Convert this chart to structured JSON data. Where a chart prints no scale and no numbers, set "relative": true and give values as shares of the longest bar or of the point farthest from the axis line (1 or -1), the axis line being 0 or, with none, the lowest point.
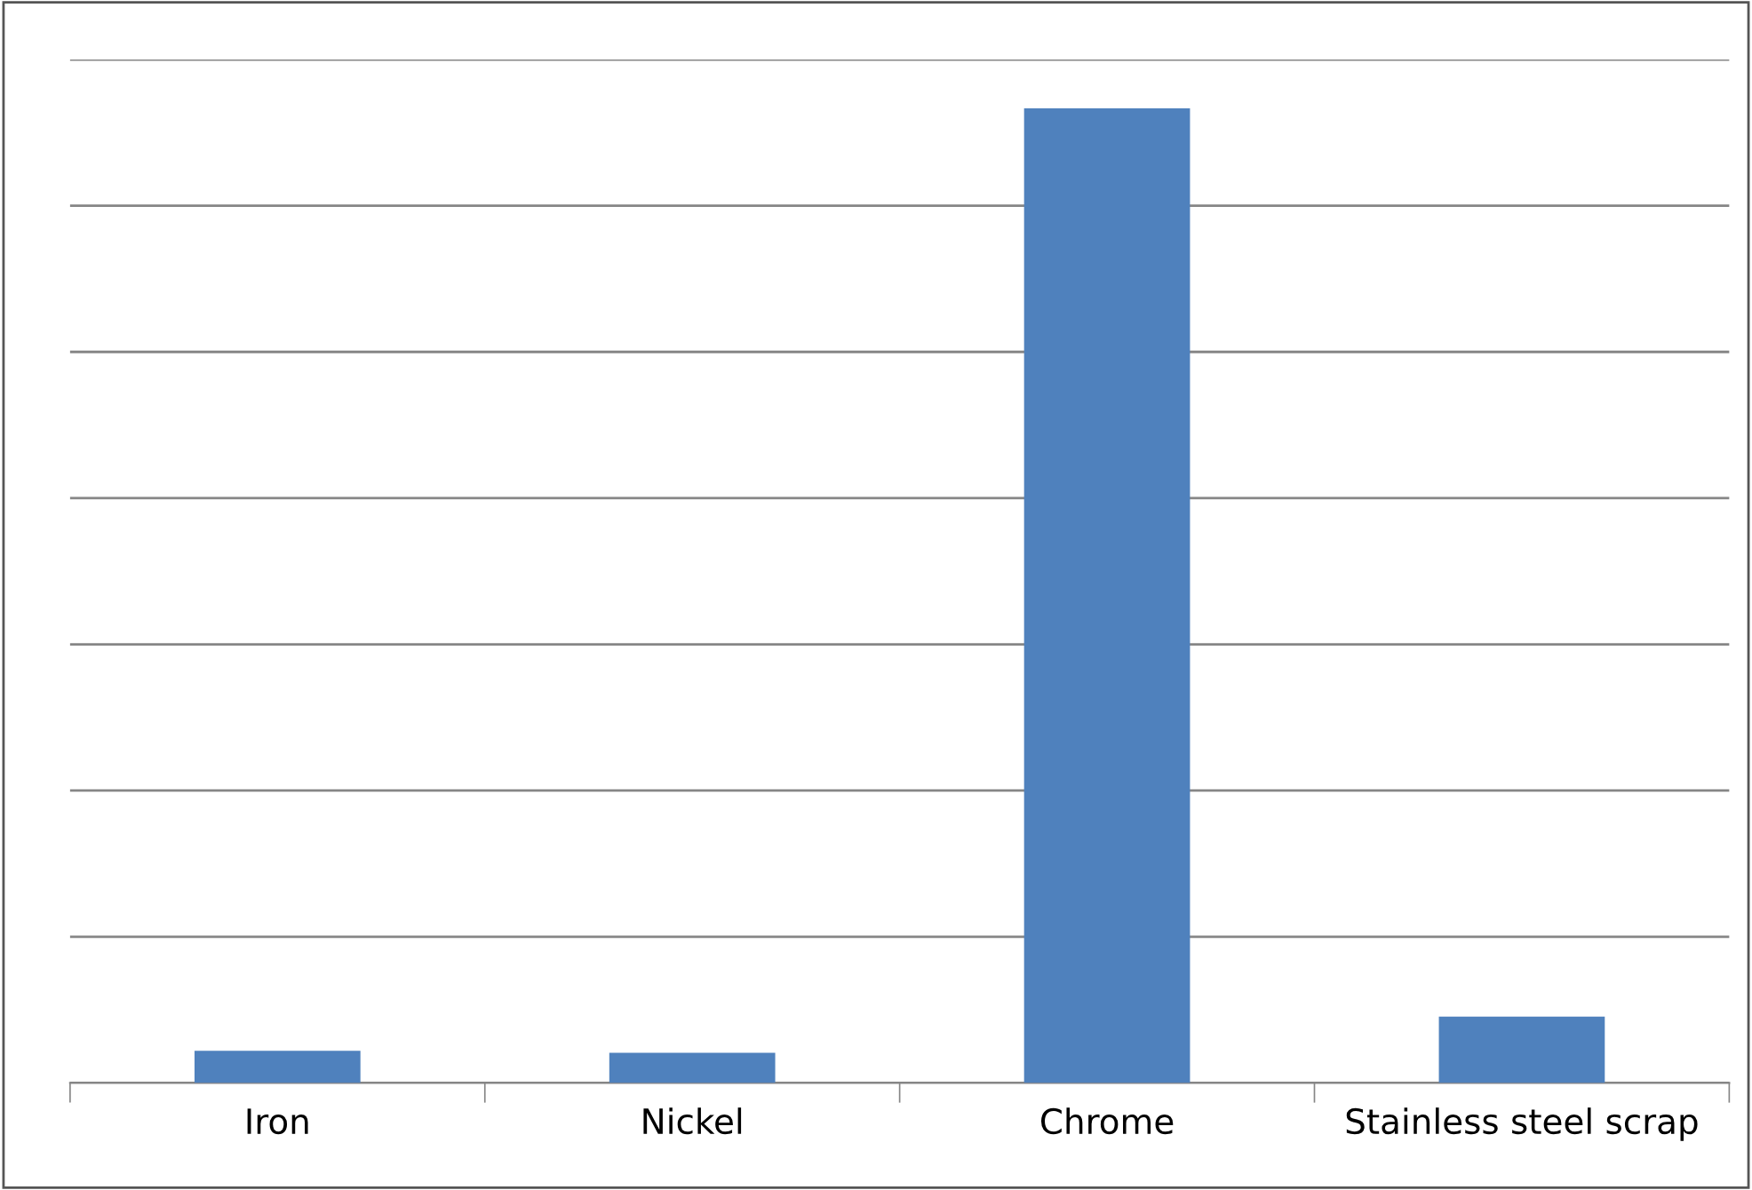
{
  "chart_data": {
    "type": "bar",
    "relative": true,
    "categories": [
      "Iron",
      "Nickel",
      "Chrome",
      "Stainless steel scrap"
    ],
    "values": [
      0.033,
      0.031,
      1,
      0.068
    ],
    "color": "#4f81bd",
    "grid": "y",
    "legend": false
  }
}
